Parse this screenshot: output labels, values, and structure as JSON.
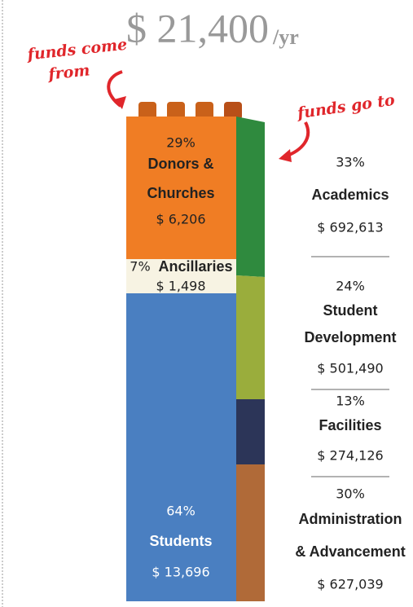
{
  "title": {
    "amount": "$ 21,400",
    "unit": "/yr"
  },
  "notes": {
    "from": [
      "funds come",
      "from"
    ],
    "to": "funds go to"
  },
  "sources": [
    {
      "percent": "29%",
      "name": [
        "Donors &",
        "Churches"
      ],
      "amount": "$ 6,206"
    },
    {
      "percent": "7%",
      "name": [
        "Ancillaries"
      ],
      "amount": "$ 1,498"
    },
    {
      "percent": "64%",
      "name": [
        "Students"
      ],
      "amount": "$ 13,696"
    }
  ],
  "uses": [
    {
      "percent": "33%",
      "name": [
        "Academics"
      ],
      "amount": "$ 692,613"
    },
    {
      "percent": "24%",
      "name": [
        "Student",
        "Development"
      ],
      "amount": "$ 501,490"
    },
    {
      "percent": "13%",
      "name": [
        "Facilities"
      ],
      "amount": "$ 274,126"
    },
    {
      "percent": "30%",
      "name": [
        "Administration",
        "& Advancement"
      ],
      "amount": "$ 627,039"
    }
  ]
}
